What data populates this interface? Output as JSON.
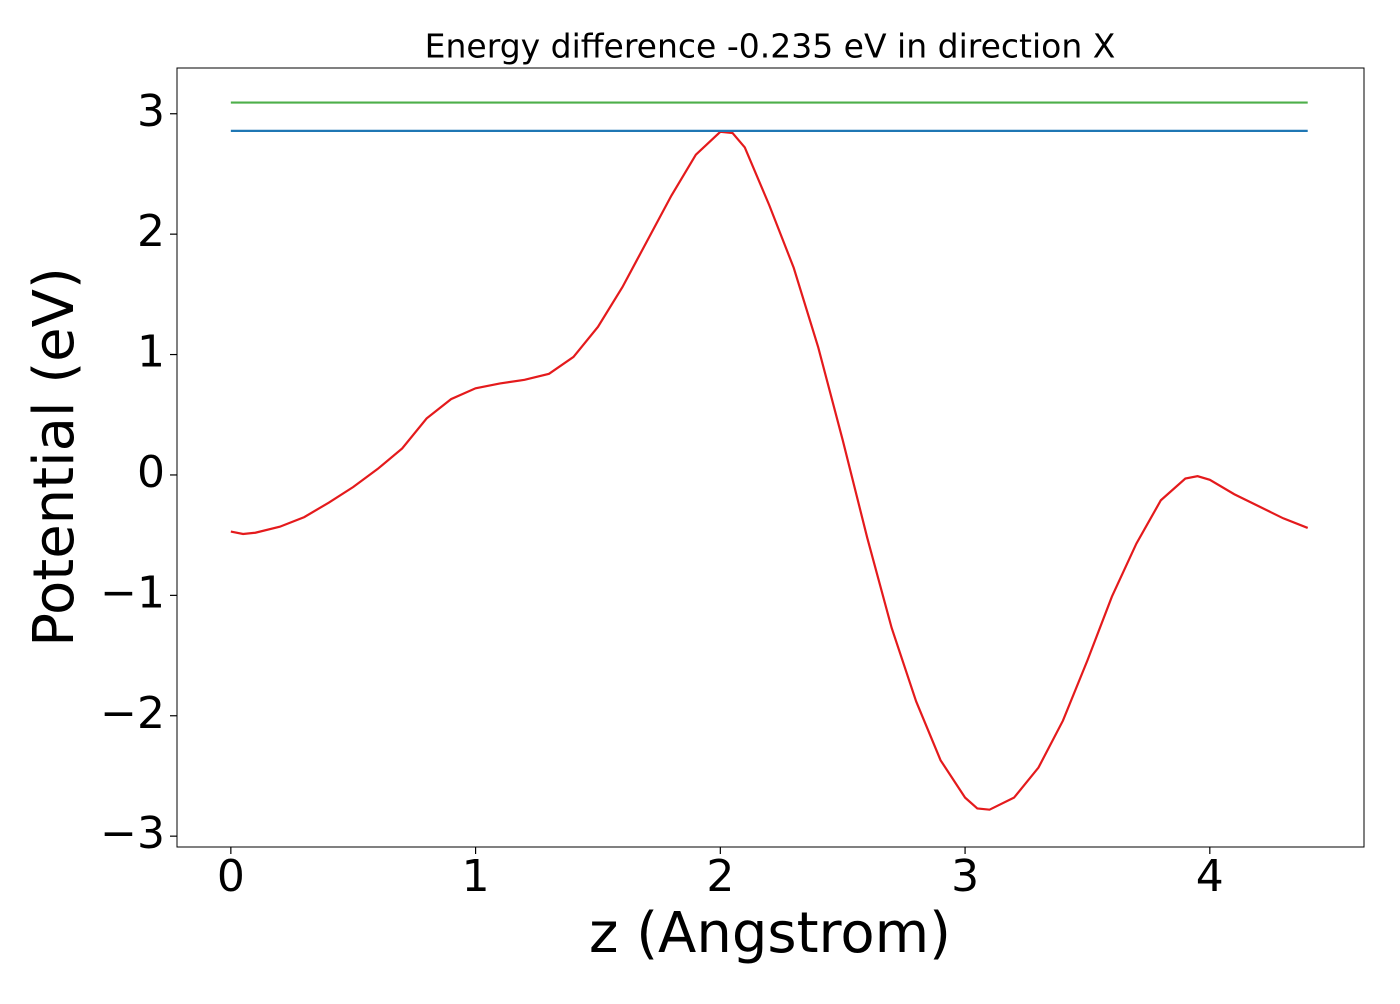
{
  "chart_data": {
    "type": "line",
    "title": "Energy difference -0.235 eV in direction X",
    "x_label": "z (Angstrom)",
    "y_label": "Potential (eV)",
    "xlim": [
      -0.22,
      4.63
    ],
    "ylim": [
      -3.09,
      3.38
    ],
    "xticks": [
      0,
      1,
      2,
      3,
      4
    ],
    "yticks": [
      {
        "value": -3,
        "label": "−3"
      },
      {
        "value": -2,
        "label": "−2"
      },
      {
        "value": -1,
        "label": "−1"
      },
      0,
      1,
      2,
      3
    ],
    "grid": false,
    "series": [
      {
        "color": "#e41a1c",
        "x": [
          0,
          0.05,
          0.1,
          0.2,
          0.3,
          0.4,
          0.5,
          0.6,
          0.7,
          0.8,
          0.9,
          1.0,
          1.1,
          1.2,
          1.3,
          1.4,
          1.5,
          1.6,
          1.7,
          1.8,
          1.9,
          2.0,
          2.05,
          2.1,
          2.2,
          2.3,
          2.4,
          2.5,
          2.6,
          2.7,
          2.8,
          2.9,
          3.0,
          3.05,
          3.1,
          3.2,
          3.3,
          3.4,
          3.5,
          3.6,
          3.7,
          3.8,
          3.9,
          3.95,
          4.0,
          4.1,
          4.2,
          4.3,
          4.4
        ],
        "values": [
          -0.47,
          -0.49,
          -0.48,
          -0.43,
          -0.35,
          -0.23,
          -0.1,
          0.05,
          0.22,
          0.47,
          0.63,
          0.72,
          0.76,
          0.79,
          0.84,
          0.98,
          1.23,
          1.56,
          1.94,
          2.32,
          2.66,
          2.85,
          2.84,
          2.72,
          2.24,
          1.72,
          1.06,
          0.29,
          -0.52,
          -1.27,
          -1.88,
          -2.37,
          -2.68,
          -2.77,
          -2.78,
          -2.68,
          -2.43,
          -2.04,
          -1.54,
          -1.01,
          -0.57,
          -0.21,
          -0.03,
          -0.01,
          -0.04,
          -0.16,
          -0.26,
          -0.36,
          -0.44
        ]
      },
      {
        "color": "#1f77b4",
        "x": [
          0,
          4.4
        ],
        "values": [
          2.858,
          2.858
        ]
      },
      {
        "color": "#4daf4a",
        "x": [
          0,
          4.4
        ],
        "values": [
          3.093,
          3.093
        ]
      }
    ]
  }
}
